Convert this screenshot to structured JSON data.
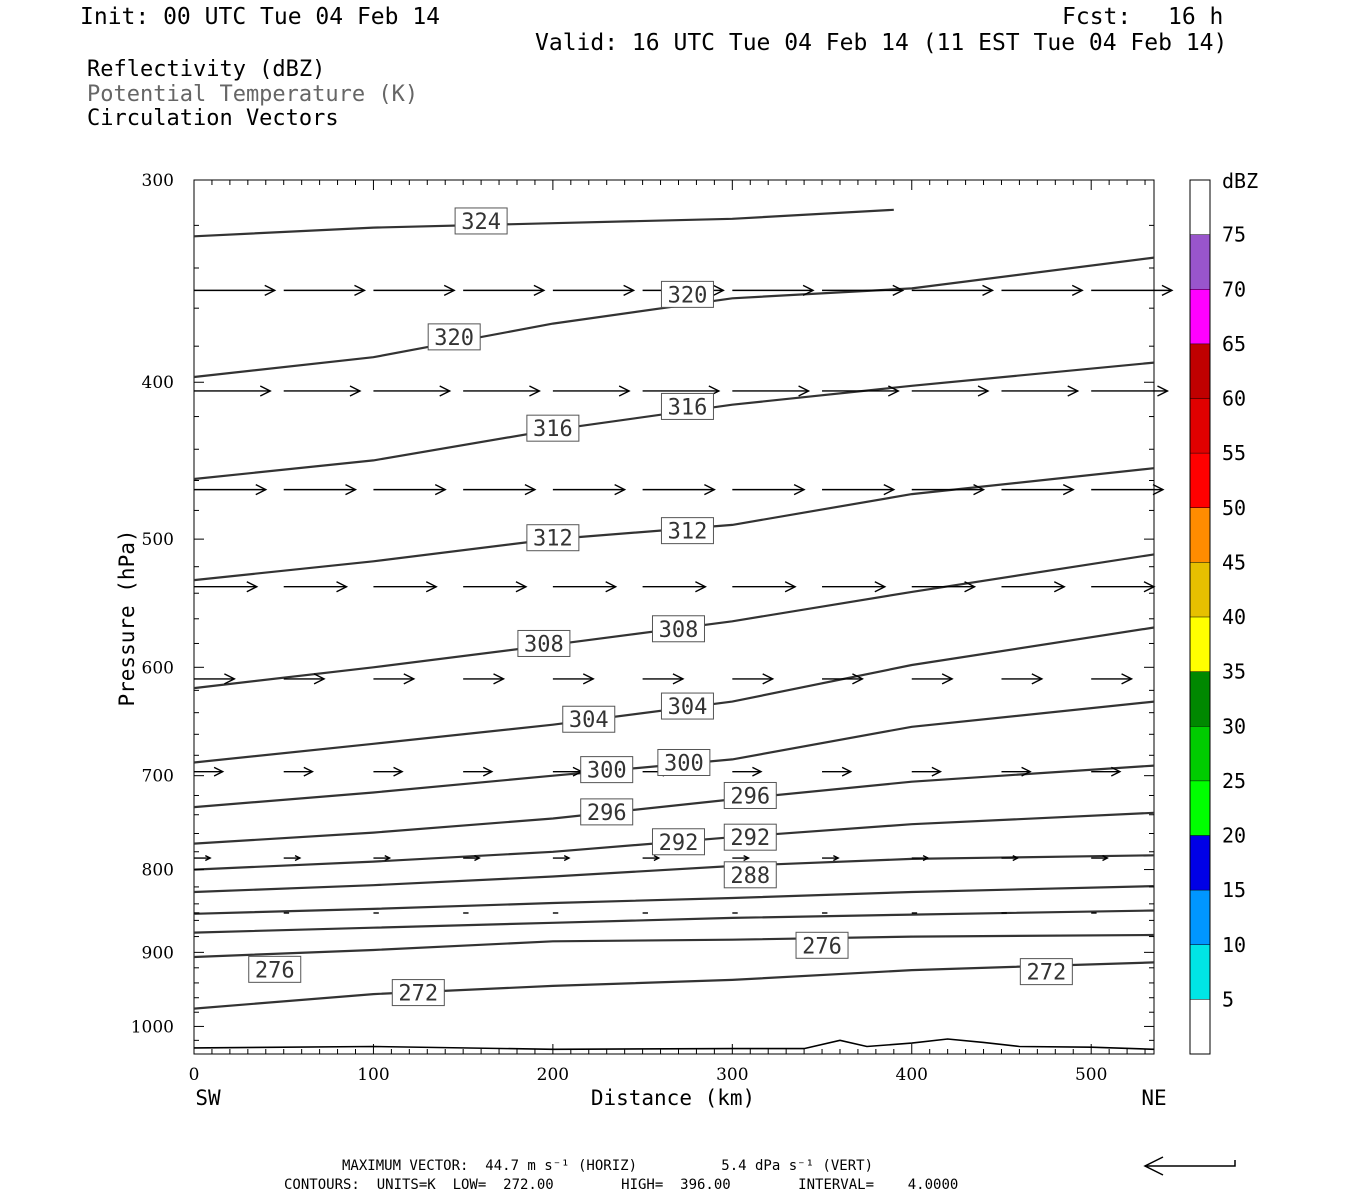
{
  "header": {
    "init": "Init: 00 UTC Tue 04 Feb 14",
    "fcst_label": "Fcst:",
    "fcst_value": "16 h",
    "valid": "Valid: 16 UTC Tue 04 Feb 14 (11 EST Tue 04 Feb 14)"
  },
  "legend": {
    "reflectivity": "Reflectivity (dBZ)",
    "theta": "Potential Temperature (K)",
    "vectors": "Circulation Vectors"
  },
  "footer": {
    "max_vector": "MAXIMUM VECTOR:  44.7 m s⁻¹ (HORIZ)          5.4 dPa s⁻¹ (VERT)",
    "contours": "CONTOURS:  UNITS=K  LOW=  272.00        HIGH=  396.00        INTERVAL=    4.0000"
  },
  "chart_data": {
    "type": "cross-section",
    "xlabel": "Distance (km)",
    "ylabel": "Pressure (hPa)",
    "xlim": [
      0,
      535
    ],
    "ylim": [
      1040,
      300
    ],
    "y_log": true,
    "x_ticks": [
      0,
      100,
      200,
      300,
      400,
      500
    ],
    "y_ticks": [
      300,
      400,
      500,
      600,
      700,
      800,
      900,
      1000
    ],
    "x_end_labels": {
      "left": "SW",
      "right": "NE"
    },
    "colorbar": {
      "title": "dBZ",
      "levels": [
        5,
        10,
        15,
        20,
        25,
        30,
        35,
        40,
        45,
        50,
        55,
        60,
        65,
        70,
        75
      ],
      "colors": [
        "#00e5e5",
        "#0096ff",
        "#0000e6",
        "#00ff00",
        "#00cc00",
        "#008800",
        "#ffff00",
        "#e6c000",
        "#ff8c00",
        "#ff0000",
        "#e00000",
        "#c00000",
        "#ff00ff",
        "#9955cc",
        "#ffffff"
      ]
    },
    "isentropes": [
      {
        "level": 324,
        "points": [
          [
            0,
            325
          ],
          [
            100,
            321
          ],
          [
            200,
            319
          ],
          [
            300,
            317
          ],
          [
            390,
            313
          ]
        ],
        "labels": [
          [
            160,
            318
          ]
        ]
      },
      {
        "level": 320,
        "points": [
          [
            0,
            397
          ],
          [
            100,
            386
          ],
          [
            200,
            368
          ],
          [
            300,
            355
          ],
          [
            400,
            350
          ],
          [
            535,
            335
          ]
        ],
        "labels": [
          [
            145,
            375
          ],
          [
            275,
            353
          ]
        ]
      },
      {
        "level": 316,
        "points": [
          [
            0,
            459
          ],
          [
            100,
            447
          ],
          [
            200,
            428
          ],
          [
            300,
            413
          ],
          [
            400,
            402
          ],
          [
            535,
            389
          ]
        ],
        "labels": [
          [
            200,
            427
          ],
          [
            275,
            414
          ]
        ]
      },
      {
        "level": 312,
        "points": [
          [
            0,
            530
          ],
          [
            100,
            516
          ],
          [
            200,
            500
          ],
          [
            300,
            490
          ],
          [
            400,
            469
          ],
          [
            535,
            452
          ]
        ],
        "labels": [
          [
            200,
            499
          ],
          [
            275,
            494
          ]
        ]
      },
      {
        "level": 308,
        "points": [
          [
            0,
            618
          ],
          [
            100,
            600
          ],
          [
            200,
            581
          ],
          [
            300,
            562
          ],
          [
            400,
            539
          ],
          [
            535,
            511
          ]
        ],
        "labels": [
          [
            195,
            580
          ],
          [
            270,
            568
          ]
        ]
      },
      {
        "level": 304,
        "points": [
          [
            0,
            687
          ],
          [
            100,
            669
          ],
          [
            200,
            651
          ],
          [
            300,
            630
          ],
          [
            400,
            598
          ],
          [
            535,
            567
          ]
        ],
        "labels": [
          [
            220,
            646
          ],
          [
            275,
            634
          ]
        ]
      },
      {
        "level": 300,
        "points": [
          [
            0,
            732
          ],
          [
            100,
            717
          ],
          [
            200,
            700
          ],
          [
            300,
            684
          ],
          [
            400,
            653
          ],
          [
            535,
            630
          ]
        ],
        "labels": [
          [
            230,
            694
          ],
          [
            273,
            687
          ]
        ]
      },
      {
        "level": 296,
        "points": [
          [
            0,
            771
          ],
          [
            100,
            759
          ],
          [
            200,
            744
          ],
          [
            300,
            724
          ],
          [
            400,
            706
          ],
          [
            535,
            690
          ]
        ],
        "labels": [
          [
            230,
            737
          ],
          [
            310,
            720
          ]
        ]
      },
      {
        "level": 292,
        "points": [
          [
            0,
            800
          ],
          [
            100,
            791
          ],
          [
            200,
            780
          ],
          [
            300,
            764
          ],
          [
            400,
            750
          ],
          [
            535,
            738
          ]
        ],
        "labels": [
          [
            270,
            769
          ],
          [
            310,
            764
          ]
        ]
      },
      {
        "level": 288,
        "points": [
          [
            0,
            826
          ],
          [
            100,
            818
          ],
          [
            200,
            808
          ],
          [
            300,
            796
          ],
          [
            400,
            788
          ],
          [
            535,
            784
          ]
        ],
        "labels": [
          [
            310,
            806
          ]
        ]
      },
      {
        "level": 284,
        "points": [
          [
            0,
            852
          ],
          [
            100,
            846
          ],
          [
            200,
            839
          ],
          [
            300,
            833
          ],
          [
            400,
            826
          ],
          [
            535,
            819
          ]
        ],
        "labels": []
      },
      {
        "level": 280,
        "points": [
          [
            0,
            875
          ],
          [
            100,
            869
          ],
          [
            200,
            863
          ],
          [
            300,
            857
          ],
          [
            400,
            853
          ],
          [
            535,
            848
          ]
        ],
        "labels": []
      },
      {
        "level": 276,
        "points": [
          [
            0,
            906
          ],
          [
            100,
            897
          ],
          [
            200,
            886
          ],
          [
            300,
            884
          ],
          [
            400,
            880
          ],
          [
            535,
            878
          ]
        ],
        "labels": [
          [
            45,
            922
          ],
          [
            350,
            891
          ]
        ]
      },
      {
        "level": 272,
        "points": [
          [
            0,
            975
          ],
          [
            100,
            955
          ],
          [
            200,
            944
          ],
          [
            300,
            936
          ],
          [
            400,
            923
          ],
          [
            535,
            913
          ]
        ],
        "labels": [
          [
            125,
            953
          ],
          [
            475,
            925
          ]
        ]
      }
    ],
    "terrain": [
      [
        0,
        1031
      ],
      [
        100,
        1029
      ],
      [
        200,
        1033
      ],
      [
        300,
        1032
      ],
      [
        340,
        1032
      ],
      [
        360,
        1020
      ],
      [
        375,
        1029
      ],
      [
        400,
        1024
      ],
      [
        420,
        1018
      ],
      [
        440,
        1023
      ],
      [
        460,
        1029
      ],
      [
        500,
        1030
      ],
      [
        535,
        1033
      ]
    ],
    "vector_rows": [
      {
        "p": 351,
        "x": [
          0,
          50,
          100,
          150,
          200,
          250,
          300,
          350,
          400,
          450,
          500
        ],
        "len": 0.9
      },
      {
        "p": 405,
        "x": [
          0,
          50,
          100,
          150,
          200,
          250,
          300,
          350,
          400,
          450,
          500
        ],
        "len": 0.85
      },
      {
        "p": 466,
        "x": [
          0,
          50,
          100,
          150,
          200,
          250,
          300,
          350,
          400,
          450,
          500
        ],
        "len": 0.8
      },
      {
        "p": 535,
        "x": [
          0,
          50,
          100,
          150,
          200,
          250,
          300,
          350,
          400,
          450,
          500
        ],
        "len": 0.7
      },
      {
        "p": 610,
        "x": [
          0,
          50,
          100,
          150,
          200,
          250,
          300,
          350,
          400,
          450,
          500
        ],
        "len": 0.45
      },
      {
        "p": 696,
        "x": [
          0,
          50,
          100,
          150,
          200,
          250,
          300,
          350,
          400,
          450,
          500
        ],
        "len": 0.32
      },
      {
        "p": 787,
        "x": [
          0,
          50,
          100,
          150,
          200,
          250,
          300,
          350,
          400,
          450,
          500
        ],
        "len": 0.18
      },
      {
        "p": 851,
        "x": [
          0,
          50,
          100,
          150,
          200,
          250,
          300,
          350,
          400,
          450,
          500
        ],
        "len": 0.06
      }
    ]
  }
}
